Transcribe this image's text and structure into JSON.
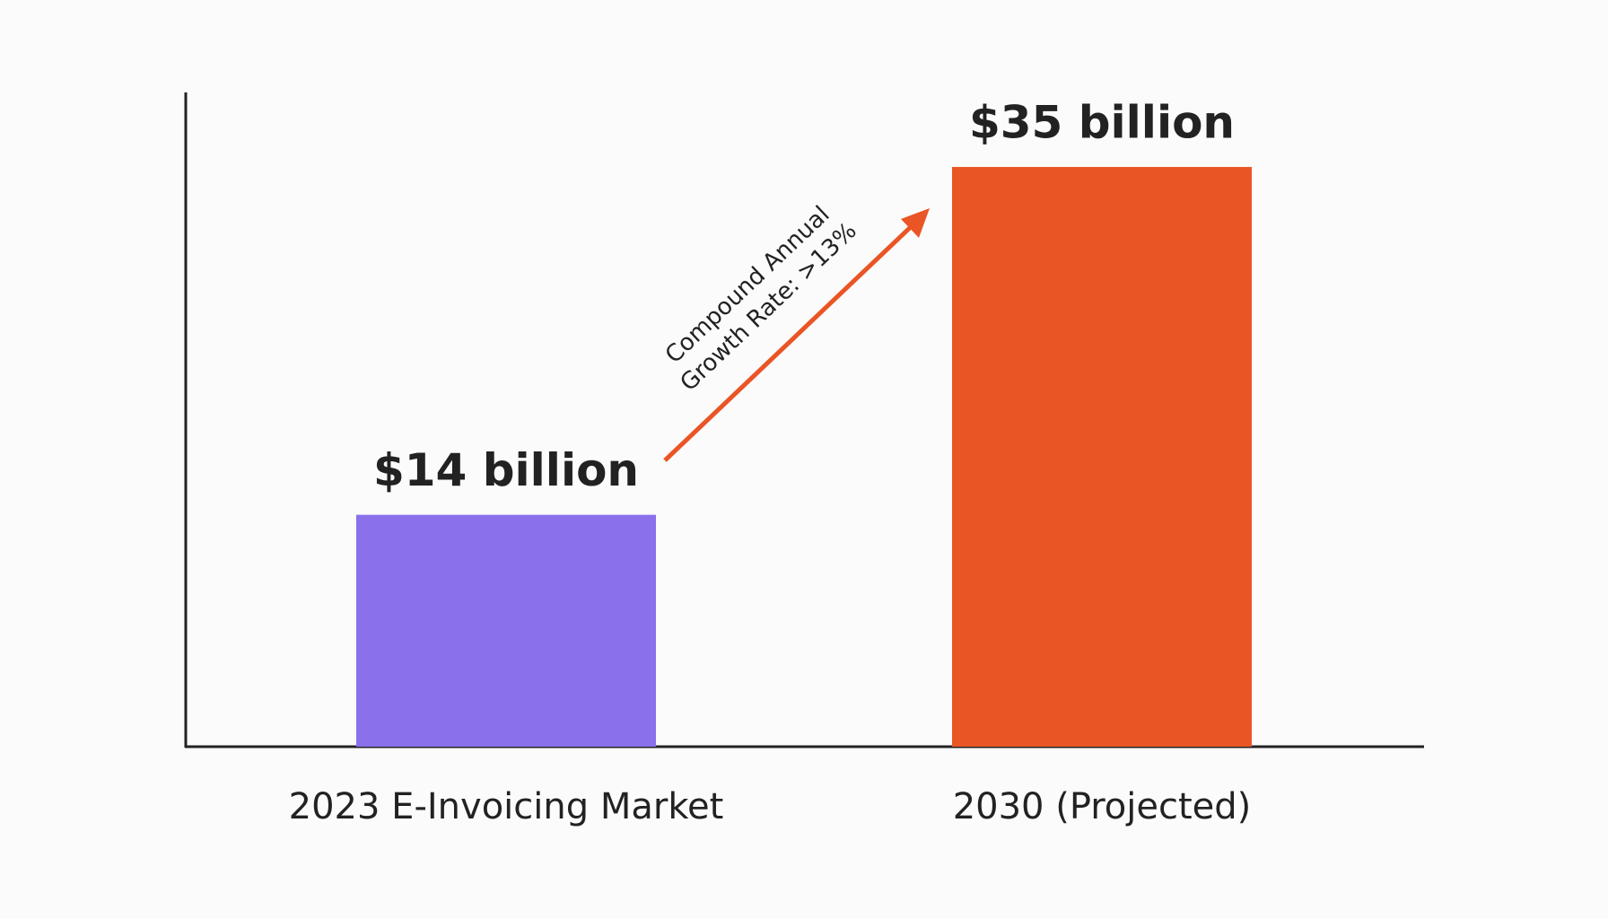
{
  "chart_data": {
    "type": "bar",
    "categories": [
      "2023 E-Invoicing Market",
      "2030 (Projected)"
    ],
    "values": [
      14,
      35
    ],
    "value_labels": [
      "$14 billion",
      "$35 billion"
    ],
    "colors": [
      "#8a70ea",
      "#ea5525"
    ],
    "ylim": [
      0,
      39.5
    ],
    "annotation": [
      "Compound Annual",
      "Growth Rate: >13%"
    ],
    "annotation_color": "#ea5525"
  }
}
